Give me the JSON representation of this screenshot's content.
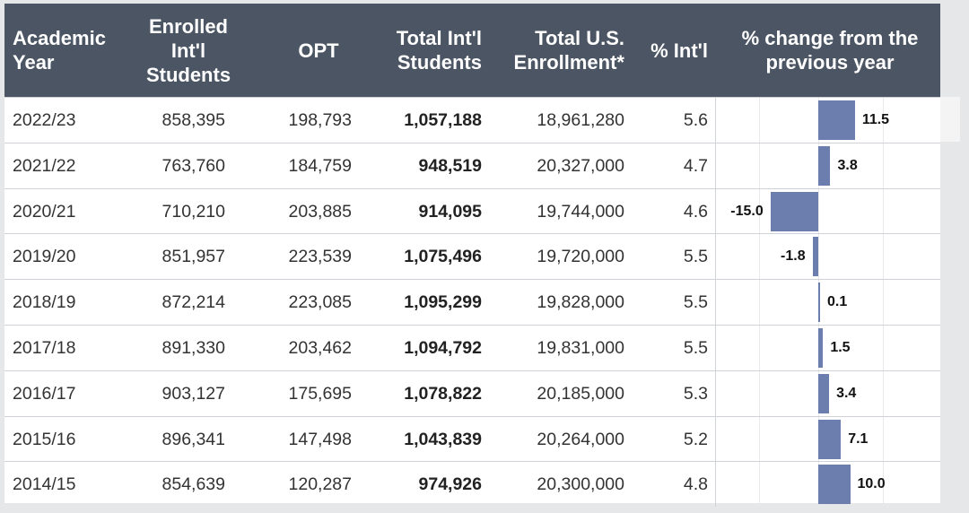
{
  "headers": {
    "year": [
      "Academic",
      "Year"
    ],
    "enrolled": [
      "Enrolled",
      "Int'l",
      "Students"
    ],
    "opt": [
      "OPT"
    ],
    "total_intl": [
      "Total Int'l",
      "Students"
    ],
    "total_us": [
      "Total U.S.",
      "Enrollment*"
    ],
    "pct_intl": [
      "% Int'l"
    ],
    "pct_change": [
      "% change from the",
      "previous year"
    ]
  },
  "rows": [
    {
      "year": "2022/23",
      "enrolled": "858,395",
      "opt": "198,793",
      "total_intl": "1,057,188",
      "total_us": "18,961,280",
      "pct_intl": "5.6",
      "change": 11.5,
      "change_label": "11.5"
    },
    {
      "year": "2021/22",
      "enrolled": "763,760",
      "opt": "184,759",
      "total_intl": "948,519",
      "total_us": "20,327,000",
      "pct_intl": "4.7",
      "change": 3.8,
      "change_label": "3.8"
    },
    {
      "year": "2020/21",
      "enrolled": "710,210",
      "opt": "203,885",
      "total_intl": "914,095",
      "total_us": "19,744,000",
      "pct_intl": "4.6",
      "change": -15.0,
      "change_label": "-15.0"
    },
    {
      "year": "2019/20",
      "enrolled": "851,957",
      "opt": "223,539",
      "total_intl": "1,075,496",
      "total_us": "19,720,000",
      "pct_intl": "5.5",
      "change": -1.8,
      "change_label": "-1.8"
    },
    {
      "year": "2018/19",
      "enrolled": "872,214",
      "opt": "223,085",
      "total_intl": "1,095,299",
      "total_us": "19,828,000",
      "pct_intl": "5.5",
      "change": 0.1,
      "change_label": "0.1"
    },
    {
      "year": "2017/18",
      "enrolled": "891,330",
      "opt": "203,462",
      "total_intl": "1,094,792",
      "total_us": "19,831,000",
      "pct_intl": "5.5",
      "change": 1.5,
      "change_label": "1.5"
    },
    {
      "year": "2016/17",
      "enrolled": "903,127",
      "opt": "175,695",
      "total_intl": "1,078,822",
      "total_us": "20,185,000",
      "pct_intl": "5.3",
      "change": 3.4,
      "change_label": "3.4"
    },
    {
      "year": "2015/16",
      "enrolled": "896,341",
      "opt": "147,498",
      "total_intl": "1,043,839",
      "total_us": "20,264,000",
      "pct_intl": "5.2",
      "change": 7.1,
      "change_label": "7.1"
    },
    {
      "year": "2014/15",
      "enrolled": "854,639",
      "opt": "120,287",
      "total_intl": "974,926",
      "total_us": "20,300,000",
      "pct_intl": "4.8",
      "change": 10.0,
      "change_label": "10.0"
    }
  ],
  "colors": {
    "header_bg": "#4b5563",
    "bar": "#6b7eae",
    "row_border": "#cfd3d8"
  }
}
